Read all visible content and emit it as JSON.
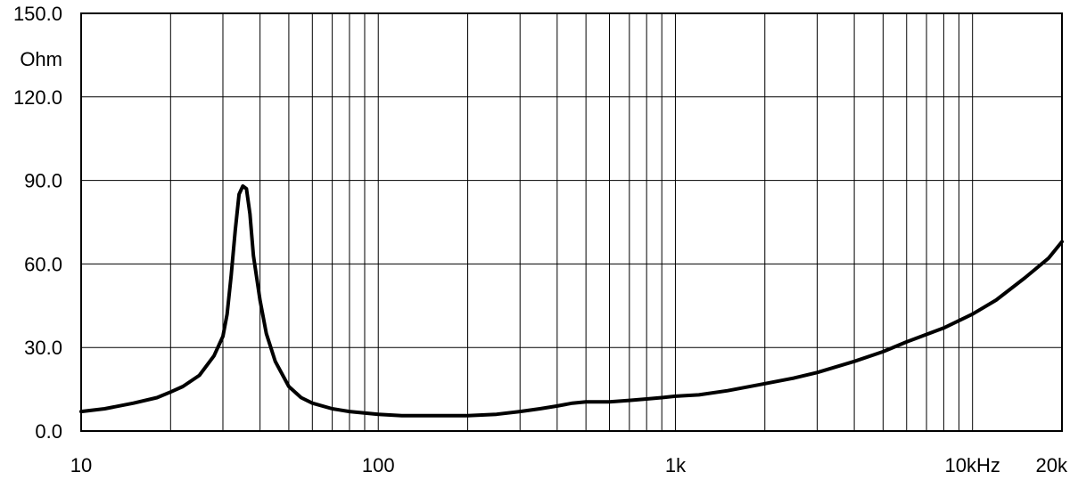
{
  "chart_data": {
    "type": "line",
    "title": "",
    "xlabel": "",
    "ylabel": "Ohm",
    "x_scale": "log",
    "xlim": [
      10,
      20000
    ],
    "ylim": [
      0,
      150
    ],
    "grid": true,
    "y_ticks": [
      {
        "value": 0,
        "label": "0.0"
      },
      {
        "value": 30,
        "label": "30.0"
      },
      {
        "value": 60,
        "label": "60.0"
      },
      {
        "value": 90,
        "label": "90.0"
      },
      {
        "value": 120,
        "label": "120.0"
      },
      {
        "value": 150,
        "label": "150.0"
      }
    ],
    "x_tick_labels": [
      {
        "value": 10,
        "label": "10"
      },
      {
        "value": 100,
        "label": "100"
      },
      {
        "value": 1000,
        "label": "1k"
      },
      {
        "value": 10000,
        "label": "10kHz"
      },
      {
        "value": 20000,
        "label": "20k"
      }
    ],
    "x_gridlines": [
      20,
      30,
      40,
      50,
      60,
      70,
      80,
      90,
      100,
      200,
      300,
      400,
      500,
      600,
      700,
      800,
      900,
      1000,
      2000,
      3000,
      4000,
      5000,
      6000,
      7000,
      8000,
      9000,
      10000,
      20000
    ],
    "series": [
      {
        "color": "#000000",
        "x": [
          10,
          12,
          15,
          18,
          20,
          22,
          25,
          28,
          30,
          31,
          32,
          33,
          34,
          35,
          36,
          37,
          38,
          40,
          42,
          45,
          50,
          55,
          60,
          70,
          80,
          100,
          120,
          150,
          200,
          250,
          300,
          350,
          400,
          450,
          500,
          600,
          700,
          800,
          900,
          1000,
          1200,
          1500,
          2000,
          2500,
          3000,
          4000,
          5000,
          6000,
          8000,
          10000,
          12000,
          15000,
          18000,
          20000
        ],
        "y": [
          7,
          8,
          10,
          12,
          14,
          16,
          20,
          27,
          34,
          42,
          56,
          72,
          85,
          88,
          87,
          78,
          63,
          47,
          35,
          25,
          16,
          12,
          10,
          8,
          7,
          6,
          5.5,
          5.5,
          5.5,
          6,
          7,
          8,
          9,
          10,
          10.5,
          10.5,
          11,
          11.5,
          12,
          12.5,
          13,
          14.5,
          17,
          19,
          21,
          25,
          28.5,
          32,
          37,
          42,
          47,
          55,
          62,
          68
        ]
      }
    ]
  }
}
